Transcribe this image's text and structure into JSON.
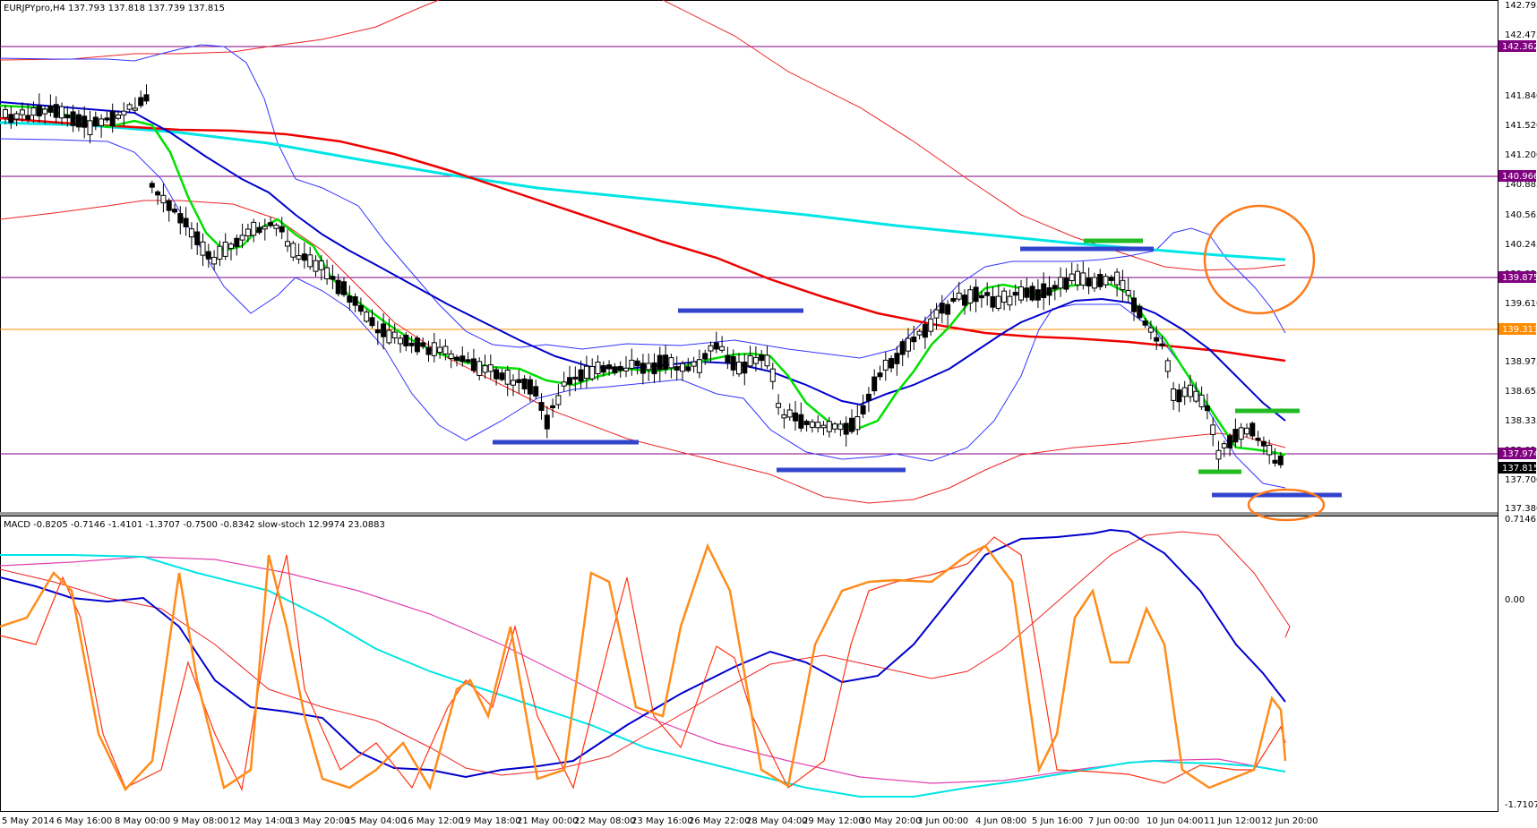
{
  "header": {
    "main": "EURJPYpro,H4  137.793 137.818 137.739 137.815",
    "sub": "MACD -0.8205 -0.7146 -1.4101 -1.3707 -0.7500 -0.8342  slow-stoch 12.9974 23.0883"
  },
  "price_axis": [
    "142.795",
    "142.475",
    "141.840",
    "141.520",
    "141.200",
    "140.885",
    "140.565",
    "140.245",
    "139.920",
    "139.610",
    "138.975",
    "138.655",
    "138.335",
    "138.020",
    "137.700",
    "137.380"
  ],
  "price_levels": [
    {
      "label": "142.362",
      "color": "#800080"
    },
    {
      "label": "140.966",
      "color": "#800080"
    },
    {
      "label": "139.875",
      "color": "#800080"
    },
    {
      "label": "139.313",
      "color": "#ff8c00"
    },
    {
      "label": "137.974",
      "color": "#800080"
    },
    {
      "label": "137.815",
      "color": "#000000"
    }
  ],
  "macd_axis": [
    "0.7146",
    "0.00",
    "-1.7107"
  ],
  "time_axis": [
    "5 May 2014",
    "6 May 16:00",
    "8 May 00:00",
    "9 May 08:00",
    "12 May 14:00",
    "13 May 20:00",
    "15 May 04:00",
    "16 May 12:00",
    "19 May 18:00",
    "21 May 00:00",
    "22 May 08:00",
    "23 May 16:00",
    "26 May 22:00",
    "28 May 04:00",
    "29 May 12:00",
    "30 May 20:00",
    "3 Jun 00:00",
    "4 Jun 08:00",
    "5 Jun 16:00",
    "7 Jun 00:00",
    "10 Jun 04:00",
    "11 Jun 12:00",
    "12 Jun 20:00"
  ],
  "colors": {
    "ma_green": "#00e000",
    "ma_blue": "#0000cc",
    "ma_red": "#ee0000",
    "ma_cyan": "#00e5e5",
    "bb_blue": "#3333ff",
    "env_red": "#ee2222",
    "hline_purple": "#800080",
    "hline_orange": "#ff8c00",
    "annot_blue": "#3344cc",
    "annot_green": "#22bb22",
    "annot_orange": "#ff7a1a",
    "stoch": "#ff8c1a",
    "stoch_sig": "#ff3311",
    "macd_main": "#0000cc",
    "macd_sig": "#ee2222",
    "macd_cyan": "#00e5e5",
    "macd_pink": "#e040b0"
  },
  "chart_data": [
    {
      "type": "candlestick",
      "title": "EURJPYpro,H4",
      "ohlc_last": {
        "open": 137.793,
        "high": 137.818,
        "low": 137.739,
        "close": 137.815
      },
      "x_start": "5 May 2014",
      "x_end": "12 Jun 20:00",
      "ylim": [
        137.38,
        142.795
      ],
      "horizontal_levels": [
        142.362,
        140.966,
        139.875,
        139.313,
        137.974
      ]
    },
    {
      "type": "line",
      "title": "MACD / slow-stoch",
      "macd": [
        -0.8205,
        -0.7146,
        -1.4101,
        -1.3707,
        -0.75,
        -0.8342
      ],
      "slow_stoch": [
        12.9974,
        23.0883
      ],
      "ylim": [
        -1.7107,
        0.7146
      ]
    }
  ]
}
